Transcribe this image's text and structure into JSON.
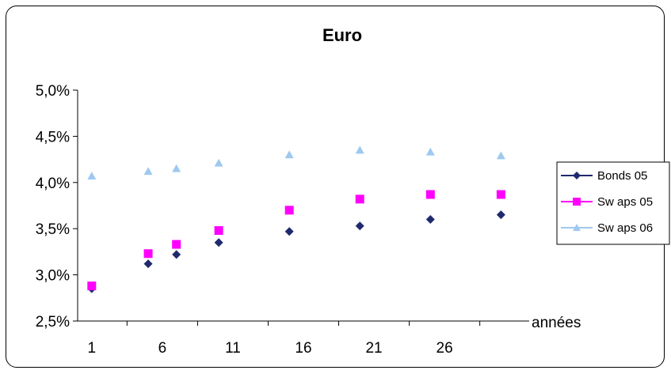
{
  "chart_data": {
    "type": "scatter",
    "title": "Euro",
    "xlabel": "années",
    "ylabel": "",
    "xlim": [
      0,
      32
    ],
    "ylim": [
      2.5,
      5.0
    ],
    "x_ticks": [
      {
        "value": 1,
        "label": "1"
      },
      {
        "value": 6,
        "label": "6"
      },
      {
        "value": 11,
        "label": "11"
      },
      {
        "value": 16,
        "label": "16"
      },
      {
        "value": 21,
        "label": "21"
      },
      {
        "value": 26,
        "label": "26"
      }
    ],
    "y_ticks": [
      {
        "value": 2.5,
        "label": "2,5%"
      },
      {
        "value": 3.0,
        "label": "3,0%"
      },
      {
        "value": 3.5,
        "label": "3,5%"
      },
      {
        "value": 4.0,
        "label": "4,0%"
      },
      {
        "value": 4.5,
        "label": "4,5%"
      },
      {
        "value": 5.0,
        "label": "5,0%"
      }
    ],
    "grid": false,
    "legend_position": "right",
    "series": [
      {
        "name": "Bonds 05",
        "color": "#1f2a6e",
        "marker": "diamond",
        "x": [
          1,
          5,
          7,
          10,
          15,
          20,
          25,
          30
        ],
        "y": [
          2.85,
          3.12,
          3.22,
          3.35,
          3.47,
          3.53,
          3.6,
          3.65
        ]
      },
      {
        "name": "Sw aps 05",
        "color": "#ff00ff",
        "marker": "square",
        "x": [
          1,
          5,
          7,
          10,
          15,
          20,
          25,
          30
        ],
        "y": [
          2.88,
          3.23,
          3.33,
          3.48,
          3.7,
          3.82,
          3.87,
          3.87
        ]
      },
      {
        "name": "Sw aps 06",
        "color": "#9ec9f0",
        "marker": "triangle",
        "x": [
          1,
          5,
          7,
          10,
          15,
          20,
          25,
          30
        ],
        "y": [
          4.07,
          4.12,
          4.15,
          4.21,
          4.3,
          4.35,
          4.33,
          4.29
        ]
      }
    ]
  }
}
